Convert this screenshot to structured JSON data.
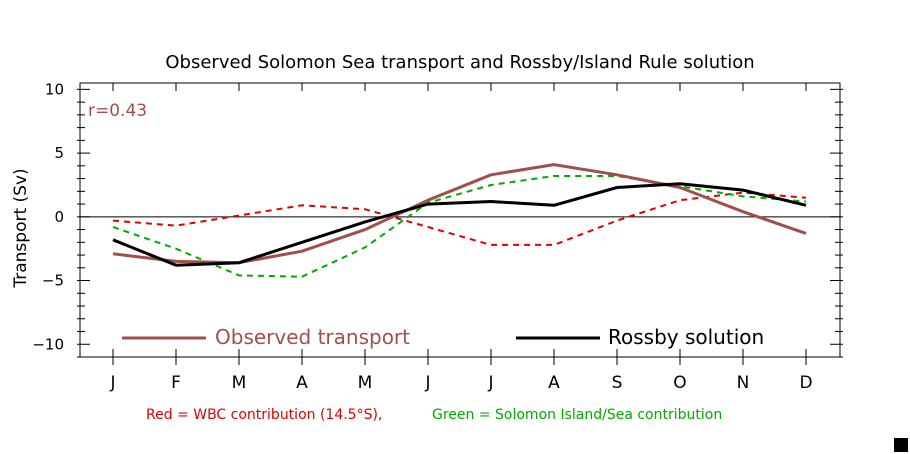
{
  "chart_data": {
    "type": "line",
    "title": "Observed Solomon Sea transport and Rossby/Island Rule solution",
    "ylabel": "Transport (Sv)",
    "xlabel": "",
    "ylim": [
      -11,
      10.5
    ],
    "yticks": [
      -10,
      -5,
      0,
      5,
      10
    ],
    "ytick_labels": [
      "−10",
      "−5",
      "0",
      "5",
      "10"
    ],
    "categories": [
      "J",
      "F",
      "M",
      "A",
      "M",
      "J",
      "J",
      "A",
      "S",
      "O",
      "N",
      "D"
    ],
    "annotation": "r=0.43",
    "series": [
      {
        "name": "Observed transport",
        "style": "solid",
        "color": "#a0504b",
        "values": [
          -2.9,
          -3.5,
          -3.6,
          -2.7,
          -1.0,
          1.3,
          3.3,
          4.1,
          3.3,
          2.3,
          0.4,
          -1.3
        ]
      },
      {
        "name": "Rossby solution",
        "style": "solid",
        "color": "#000000",
        "values": [
          -1.8,
          -3.8,
          -3.6,
          -2.0,
          -0.4,
          1.0,
          1.2,
          0.9,
          2.3,
          2.6,
          2.1,
          0.9
        ]
      },
      {
        "name": "",
        "style": "dashed",
        "color": "#e00000",
        "values": [
          -0.3,
          -0.7,
          0.1,
          0.9,
          0.6,
          -0.8,
          -2.2,
          -2.2,
          -0.3,
          1.3,
          1.9,
          1.5
        ]
      },
      {
        "name": "",
        "style": "dashed",
        "color": "#00aa00",
        "values": [
          -0.8,
          -2.5,
          -4.6,
          -4.7,
          -2.4,
          1.1,
          2.5,
          3.2,
          3.2,
          2.4,
          1.6,
          1.2
        ]
      }
    ],
    "footnote_red": "Red = WBC contribution (14.5°S),",
    "footnote_green": "Green = Solomon Island/Sea contribution"
  }
}
